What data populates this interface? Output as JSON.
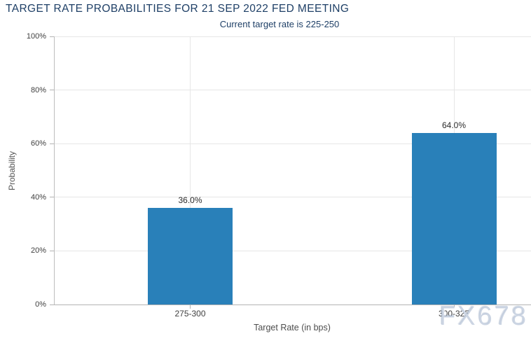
{
  "header": {
    "title": "TARGET RATE PROBABILITIES FOR 21 SEP 2022 FED MEETING",
    "subtitle": "Current target rate is 225-250"
  },
  "watermark": {
    "text": "FX678",
    "color": "#adbcd2"
  },
  "chart_data": {
    "type": "bar",
    "title": "TARGET RATE PROBABILITIES FOR 21 SEP 2022 FED MEETING",
    "subtitle": "Current target rate is 225-250",
    "categories": [
      "275-300",
      "300-325"
    ],
    "values": [
      36.0,
      64.0
    ],
    "value_labels": [
      "36.0%",
      "64.0%"
    ],
    "xlabel": "Target Rate (in bps)",
    "ylabel": "Probability",
    "ylim": [
      0,
      100
    ],
    "yticks": [
      0,
      20,
      40,
      60,
      80,
      100
    ],
    "ytick_labels": [
      "0%",
      "20%",
      "40%",
      "60%",
      "80%",
      "100%"
    ],
    "grid": true,
    "legend_position": "none",
    "bar_color": "#2980b9",
    "background_color": "#ffffff",
    "title_color": "#1e3f66"
  }
}
